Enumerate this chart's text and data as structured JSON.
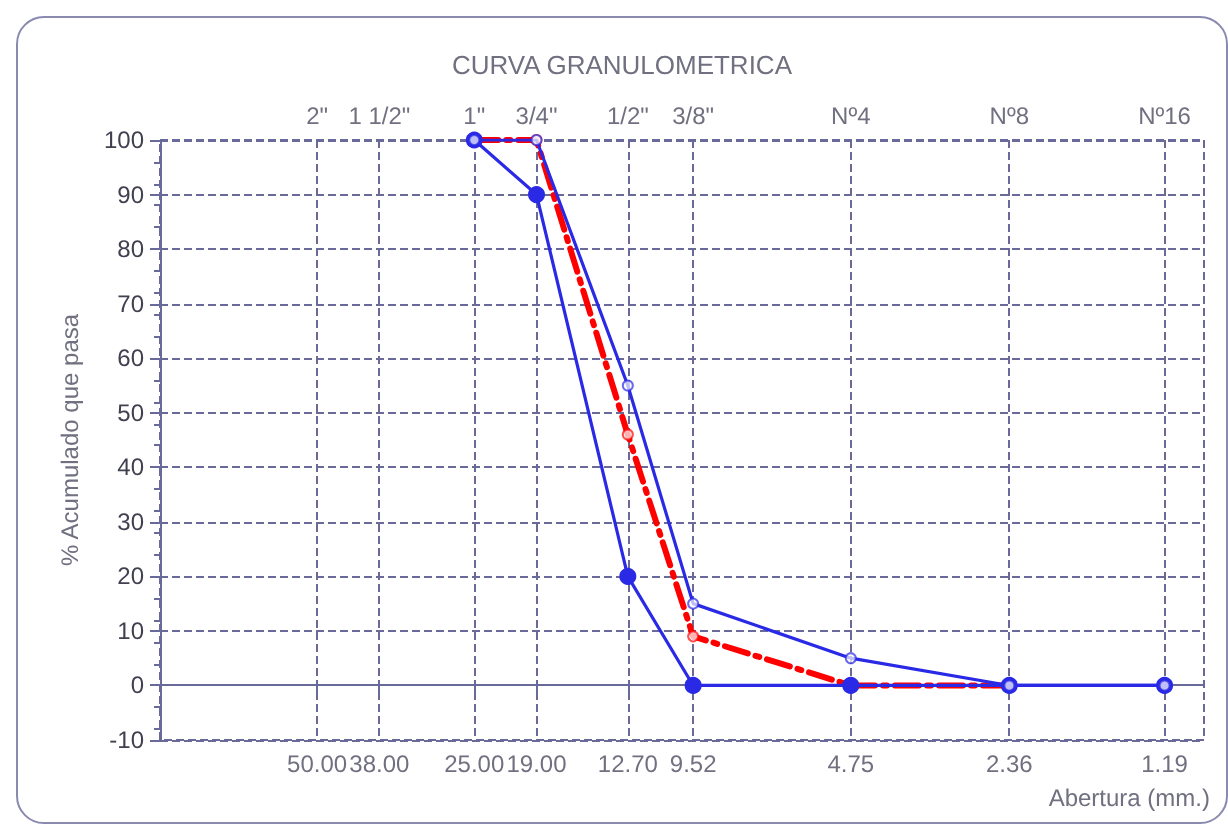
{
  "chart_data": {
    "type": "line",
    "title": "CURVA GRANULOMETRICA",
    "xlabel": "Abertura (mm.)",
    "ylabel": "% Acumulado que pasa",
    "log": "x",
    "xlim": [
      100,
      1
    ],
    "ylim": [
      -10,
      100
    ],
    "xticks": [
      {
        "value": 50,
        "label": "50.00"
      },
      {
        "value": 38,
        "label": "38.00"
      },
      {
        "value": 25,
        "label": "25.00"
      },
      {
        "value": 19,
        "label": "19.00"
      },
      {
        "value": 12.7,
        "label": "12.70"
      },
      9.52,
      4.75,
      2.36,
      1.19
    ],
    "annotations": [
      "2\"",
      "1 1/2\"",
      "1\"",
      "3/4\"",
      "1/2\"",
      "3/8\"",
      "Nº4",
      "Nº8",
      "Nº16"
    ],
    "ref_lines": [
      {
        "axis": "y",
        "value": 0,
        "color": "#6a6a9a"
      }
    ],
    "yticks": [
      -10,
      0,
      10,
      20,
      30,
      40,
      50,
      60,
      70,
      80,
      90,
      100
    ],
    "grid": true,
    "series": [
      {
        "color": "#2a2ae6",
        "marker": "circle",
        "line_style": "solid",
        "x": [
          25,
          19,
          12.7,
          9.52,
          4.75,
          2.36,
          1.19
        ],
        "values": [
          100,
          100,
          55,
          15,
          5,
          0,
          0
        ]
      },
      {
        "color": "#2a2ae6",
        "marker": "circle",
        "line_style": "solid",
        "x": [
          25,
          19,
          12.7,
          9.52,
          4.75,
          2.36,
          1.19
        ],
        "values": [
          100,
          90,
          20,
          0,
          0,
          0,
          0
        ]
      },
      {
        "color": "#ff0000",
        "marker": "circle",
        "line_style": "dashed",
        "x": [
          25,
          19,
          12.7,
          9.52,
          4.75,
          2.36
        ],
        "values": [
          100,
          100,
          46,
          9,
          0,
          0
        ]
      }
    ]
  }
}
